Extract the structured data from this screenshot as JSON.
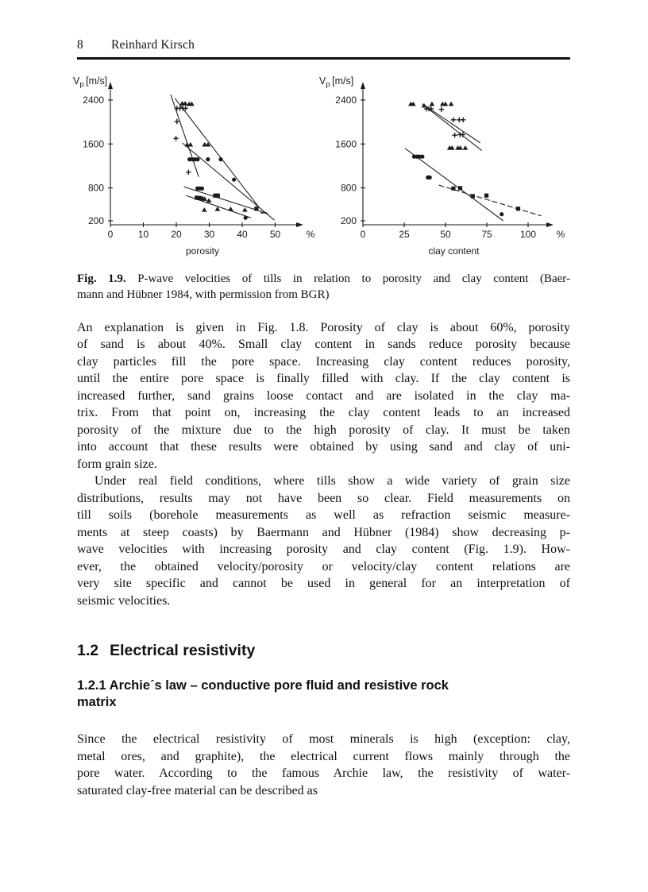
{
  "header": {
    "page_number": "8",
    "author": "Reinhard Kirsch"
  },
  "figure": {
    "caption": {
      "label": "Fig. 1.9.",
      "line1_rest": " P-wave velocities of tills in relation to porosity and clay content (Baer-",
      "line2": "mann and Hübner 1984, with permission from BGR)"
    }
  },
  "chart_data": [
    {
      "type": "scatter",
      "xlabel": "porosity",
      "x_unit_label": "%",
      "ylabel_main": "V",
      "ylabel_sub": "p",
      "ylabel_units": "[m/s]",
      "x_ticks": [
        0,
        10,
        20,
        30,
        40,
        50
      ],
      "y_ticks": [
        200,
        800,
        1600,
        2400
      ],
      "xlim": [
        0,
        56
      ],
      "ylim": [
        200,
        2600
      ],
      "grid": false,
      "legend": "none",
      "series": [
        {
          "name": "triangle-markers",
          "marker": "triangle",
          "points": [
            [
              21.8,
              2340
            ],
            [
              22.7,
              2340
            ],
            [
              23.9,
              2330
            ],
            [
              24.7,
              2330
            ],
            [
              23.3,
              1590
            ],
            [
              24.3,
              1590
            ],
            [
              28.6,
              1590
            ],
            [
              29.6,
              1590
            ],
            [
              28.6,
              600
            ],
            [
              29.9,
              570
            ],
            [
              28.5,
              400
            ],
            [
              32.5,
              415
            ],
            [
              36.5,
              415
            ],
            [
              40.8,
              400
            ]
          ]
        },
        {
          "name": "plus-markers",
          "marker": "plus",
          "points": [
            [
              20.2,
              2250
            ],
            [
              21.1,
              2250
            ],
            [
              22.0,
              2250
            ],
            [
              22.8,
              2250
            ],
            [
              20.2,
              2010
            ],
            [
              19.9,
              1700
            ],
            [
              23.7,
              1085
            ]
          ]
        },
        {
          "name": "circle-markers",
          "marker": "circle",
          "points": [
            [
              24.0,
              1320
            ],
            [
              24.9,
              1320
            ],
            [
              25.7,
              1320
            ],
            [
              26.5,
              1320
            ],
            [
              29.6,
              1320
            ],
            [
              33.5,
              1320
            ],
            [
              37.5,
              950
            ],
            [
              26.4,
              790
            ],
            [
              27.1,
              790
            ],
            [
              27.8,
              790
            ],
            [
              41.0,
              255
            ]
          ]
        },
        {
          "name": "square-markers",
          "marker": "square",
          "points": [
            [
              31.8,
              660
            ],
            [
              32.6,
              660
            ],
            [
              26.2,
              620
            ],
            [
              26.9,
              615
            ],
            [
              27.6,
              608
            ],
            [
              44.3,
              420
            ]
          ]
        },
        {
          "name": "dash-markers",
          "marker": "dash",
          "points": [
            [
              46.5,
              345
            ]
          ]
        }
      ],
      "trend_lines": [
        {
          "x1": 18.3,
          "y1": 2500,
          "x2": 26.8,
          "y2": 1000,
          "dashed": false
        },
        {
          "x1": 19.6,
          "y1": 2430,
          "x2": 45.3,
          "y2": 430,
          "dashed": false
        },
        {
          "x1": 21.8,
          "y1": 1620,
          "x2": 49.8,
          "y2": 210,
          "dashed": false
        },
        {
          "x1": 22.3,
          "y1": 820,
          "x2": 47.8,
          "y2": 330,
          "dashed": false
        },
        {
          "x1": 23.0,
          "y1": 660,
          "x2": 42.6,
          "y2": 255,
          "dashed": false
        }
      ]
    },
    {
      "type": "scatter",
      "xlabel": "clay content",
      "x_unit_label": "%",
      "ylabel_main": "V",
      "ylabel_sub": "p",
      "ylabel_units": "[m/s]",
      "x_ticks": [
        0,
        25,
        50,
        75,
        100
      ],
      "y_ticks": [
        200,
        800,
        1600,
        2400
      ],
      "xlim": [
        0,
        112
      ],
      "ylim": [
        200,
        2600
      ],
      "grid": false,
      "legend": "none",
      "series": [
        {
          "name": "triangle-markers",
          "marker": "triangle",
          "points": [
            [
              29,
              2330
            ],
            [
              30.5,
              2330
            ],
            [
              37,
              2300
            ],
            [
              41.8,
              2330
            ],
            [
              48.2,
              2330
            ],
            [
              50,
              2330
            ],
            [
              53.4,
              2330
            ],
            [
              52.5,
              1530
            ],
            [
              54,
              1530
            ],
            [
              57.5,
              1530
            ],
            [
              59,
              1530
            ],
            [
              62,
              1530
            ]
          ]
        },
        {
          "name": "plus-markers",
          "marker": "plus",
          "points": [
            [
              38.5,
              2240
            ],
            [
              39.9,
              2240
            ],
            [
              41.3,
              2240
            ],
            [
              47.5,
              2230
            ],
            [
              54.8,
              2040
            ],
            [
              58.3,
              2040
            ],
            [
              60.7,
              2040
            ],
            [
              55.6,
              1760
            ],
            [
              58.8,
              1770
            ],
            [
              60.5,
              1770
            ]
          ]
        },
        {
          "name": "circle-markers",
          "marker": "circle",
          "points": [
            [
              31,
              1370
            ],
            [
              32.6,
              1370
            ],
            [
              34.2,
              1370
            ],
            [
              36,
              1370
            ],
            [
              39.3,
              990
            ],
            [
              40.5,
              990
            ],
            [
              84,
              320
            ]
          ]
        },
        {
          "name": "square-markers",
          "marker": "square",
          "points": [
            [
              54.8,
              790
            ],
            [
              58.9,
              795
            ],
            [
              66.5,
              650
            ],
            [
              74.8,
              660
            ],
            [
              94,
              420
            ]
          ]
        }
      ],
      "trend_lines": [
        {
          "x1": 36.0,
          "y1": 2330,
          "x2": 71.0,
          "y2": 1620,
          "dashed": false
        },
        {
          "x1": 37.5,
          "y1": 2290,
          "x2": 72.0,
          "y2": 1480,
          "dashed": false
        },
        {
          "x1": 25.5,
          "y1": 1520,
          "x2": 85.0,
          "y2": 200,
          "dashed": false
        },
        {
          "x1": 46.0,
          "y1": 850,
          "x2": 108.0,
          "y2": 290,
          "dashed": true
        }
      ]
    }
  ],
  "body": {
    "para1_lines": [
      "An explanation is given in Fig. 1.8. Porosity of clay is about 60%, porosity",
      "of sand is about 40%. Small clay content in sands reduce porosity because",
      "clay particles fill the pore space. Increasing clay content reduces porosity,",
      "until the entire pore space is finally filled with clay. If the clay content is",
      "increased further, sand grains loose contact and are isolated in the clay ma-",
      "trix. From that point on, increasing the clay content leads to an increased",
      "porosity of the mixture due to the high porosity of clay. It must be taken",
      "into account that these results were obtained by using sand and clay of uni-",
      "form grain size."
    ],
    "para2_lines": [
      "Under real field conditions, where tills show a wide variety of grain size",
      "distributions, results may not have been so clear. Field measurements on",
      "till soils (borehole measurements as well as refraction seismic measure-",
      "ments at steep coasts) by Baermann and Hübner (1984) show decreasing p-",
      "wave velocities with increasing porosity and clay content (Fig. 1.9). How-",
      "ever, the obtained velocity/porosity or velocity/clay content relations are",
      "very site specific and cannot be used in general for an interpretation of",
      "seismic velocities."
    ],
    "section_heading": {
      "number": "1.2",
      "title": "Electrical resistivity"
    },
    "subsection_heading_lines": [
      "1.2.1 Archie´s law – conductive pore fluid and resistive rock",
      "matrix"
    ],
    "para3_lines": [
      "Since the electrical resistivity of most minerals is high (exception: clay,",
      "metal ores, and graphite), the electrical current flows mainly through the",
      "pore water. According to the famous Archie law, the resistivity of water-",
      "saturated clay-free material can be described as"
    ]
  },
  "colors": {
    "text": "#111111",
    "marker": "#1a1a1a",
    "line": "#222222"
  }
}
